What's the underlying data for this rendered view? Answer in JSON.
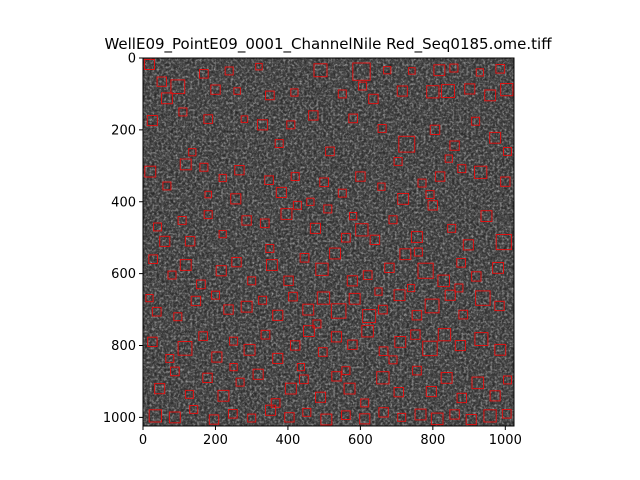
{
  "chart_data": {
    "type": "image",
    "title": "WellE09_PointE09_0001_ChannelNile Red_Seq0185.ome.tiff",
    "xlabel": "",
    "ylabel": "",
    "xlim": [
      0,
      1024
    ],
    "ylim": [
      1024,
      0
    ],
    "x_ticks": [
      0,
      200,
      400,
      600,
      800,
      1000
    ],
    "y_ticks": [
      0,
      200,
      400,
      600,
      800,
      1000
    ],
    "grid": false,
    "background_image": "grayscale fluorescence microscopy field with dense speckled cells",
    "box_color": "#dd1111",
    "boxes_note": "detection boxes as [x, y, size] in image pixel units",
    "boxes": [
      [
        18,
        18,
        28
      ],
      [
        96,
        80,
        38
      ],
      [
        168,
        44,
        24
      ],
      [
        238,
        36,
        22
      ],
      [
        320,
        24,
        18
      ],
      [
        490,
        34,
        36
      ],
      [
        603,
        38,
        48
      ],
      [
        674,
        34,
        20
      ],
      [
        742,
        36,
        18
      ],
      [
        818,
        34,
        30
      ],
      [
        858,
        28,
        22
      ],
      [
        930,
        40,
        20
      ],
      [
        986,
        30,
        24
      ],
      [
        52,
        66,
        26
      ],
      [
        66,
        112,
        30
      ],
      [
        200,
        88,
        26
      ],
      [
        260,
        92,
        18
      ],
      [
        350,
        104,
        24
      ],
      [
        418,
        96,
        20
      ],
      [
        550,
        100,
        22
      ],
      [
        606,
        78,
        22
      ],
      [
        636,
        114,
        26
      ],
      [
        716,
        92,
        28
      ],
      [
        800,
        94,
        34
      ],
      [
        842,
        92,
        36
      ],
      [
        902,
        86,
        28
      ],
      [
        958,
        104,
        30
      ],
      [
        1004,
        88,
        34
      ],
      [
        26,
        174,
        28
      ],
      [
        110,
        150,
        22
      ],
      [
        180,
        170,
        24
      ],
      [
        280,
        170,
        18
      ],
      [
        330,
        186,
        28
      ],
      [
        408,
        186,
        22
      ],
      [
        470,
        160,
        26
      ],
      [
        580,
        168,
        24
      ],
      [
        660,
        196,
        22
      ],
      [
        728,
        240,
        44
      ],
      [
        806,
        200,
        26
      ],
      [
        860,
        244,
        26
      ],
      [
        918,
        176,
        22
      ],
      [
        972,
        222,
        30
      ],
      [
        20,
        316,
        30
      ],
      [
        66,
        356,
        22
      ],
      [
        118,
        296,
        30
      ],
      [
        168,
        304,
        22
      ],
      [
        220,
        334,
        20
      ],
      [
        266,
        312,
        26
      ],
      [
        348,
        340,
        24
      ],
      [
        382,
        374,
        28
      ],
      [
        420,
        330,
        22
      ],
      [
        500,
        346,
        24
      ],
      [
        550,
        376,
        22
      ],
      [
        600,
        330,
        26
      ],
      [
        658,
        358,
        20
      ],
      [
        718,
        392,
        30
      ],
      [
        770,
        348,
        22
      ],
      [
        820,
        330,
        26
      ],
      [
        880,
        308,
        22
      ],
      [
        932,
        318,
        34
      ],
      [
        1000,
        344,
        26
      ],
      [
        40,
        470,
        22
      ],
      [
        60,
        510,
        28
      ],
      [
        108,
        452,
        22
      ],
      [
        130,
        510,
        26
      ],
      [
        180,
        436,
        22
      ],
      [
        220,
        490,
        20
      ],
      [
        256,
        392,
        28
      ],
      [
        286,
        452,
        26
      ],
      [
        336,
        460,
        24
      ],
      [
        396,
        434,
        30
      ],
      [
        426,
        410,
        22
      ],
      [
        476,
        474,
        28
      ],
      [
        510,
        420,
        22
      ],
      [
        560,
        500,
        24
      ],
      [
        604,
        478,
        34
      ],
      [
        640,
        506,
        26
      ],
      [
        690,
        450,
        22
      ],
      [
        756,
        498,
        30
      ],
      [
        800,
        410,
        26
      ],
      [
        852,
        474,
        22
      ],
      [
        898,
        520,
        28
      ],
      [
        948,
        440,
        30
      ],
      [
        996,
        512,
        42
      ],
      [
        28,
        560,
        24
      ],
      [
        80,
        604,
        22
      ],
      [
        118,
        576,
        30
      ],
      [
        160,
        630,
        24
      ],
      [
        216,
        592,
        28
      ],
      [
        258,
        568,
        26
      ],
      [
        300,
        620,
        22
      ],
      [
        356,
        576,
        30
      ],
      [
        402,
        620,
        26
      ],
      [
        446,
        556,
        24
      ],
      [
        494,
        588,
        34
      ],
      [
        530,
        544,
        30
      ],
      [
        578,
        620,
        28
      ],
      [
        620,
        604,
        24
      ],
      [
        680,
        584,
        26
      ],
      [
        724,
        546,
        30
      ],
      [
        780,
        592,
        42
      ],
      [
        830,
        620,
        32
      ],
      [
        878,
        570,
        24
      ],
      [
        920,
        608,
        26
      ],
      [
        980,
        584,
        30
      ],
      [
        18,
        668,
        20
      ],
      [
        38,
        706,
        24
      ],
      [
        96,
        720,
        22
      ],
      [
        146,
        676,
        26
      ],
      [
        200,
        660,
        22
      ],
      [
        236,
        700,
        26
      ],
      [
        286,
        692,
        30
      ],
      [
        330,
        674,
        22
      ],
      [
        372,
        716,
        28
      ],
      [
        414,
        664,
        24
      ],
      [
        456,
        700,
        30
      ],
      [
        498,
        668,
        34
      ],
      [
        540,
        704,
        40
      ],
      [
        584,
        670,
        30
      ],
      [
        624,
        718,
        36
      ],
      [
        662,
        700,
        24
      ],
      [
        708,
        660,
        30
      ],
      [
        756,
        716,
        26
      ],
      [
        798,
        690,
        38
      ],
      [
        848,
        660,
        28
      ],
      [
        884,
        714,
        24
      ],
      [
        938,
        668,
        40
      ],
      [
        984,
        690,
        26
      ],
      [
        26,
        790,
        26
      ],
      [
        74,
        836,
        22
      ],
      [
        116,
        808,
        38
      ],
      [
        166,
        774,
        24
      ],
      [
        204,
        832,
        28
      ],
      [
        250,
        788,
        22
      ],
      [
        294,
        812,
        30
      ],
      [
        338,
        770,
        24
      ],
      [
        372,
        836,
        28
      ],
      [
        420,
        800,
        26
      ],
      [
        458,
        760,
        30
      ],
      [
        496,
        818,
        24
      ],
      [
        534,
        776,
        28
      ],
      [
        578,
        798,
        26
      ],
      [
        620,
        760,
        32
      ],
      [
        664,
        816,
        24
      ],
      [
        710,
        790,
        30
      ],
      [
        752,
        770,
        26
      ],
      [
        792,
        808,
        40
      ],
      [
        832,
        770,
        34
      ],
      [
        876,
        800,
        28
      ],
      [
        934,
        782,
        36
      ],
      [
        986,
        812,
        30
      ],
      [
        46,
        920,
        28
      ],
      [
        88,
        872,
        24
      ],
      [
        128,
        936,
        22
      ],
      [
        178,
        890,
        26
      ],
      [
        222,
        940,
        30
      ],
      [
        268,
        902,
        22
      ],
      [
        318,
        880,
        28
      ],
      [
        366,
        960,
        24
      ],
      [
        408,
        920,
        30
      ],
      [
        444,
        894,
        24
      ],
      [
        490,
        944,
        28
      ],
      [
        534,
        886,
        26
      ],
      [
        570,
        920,
        30
      ],
      [
        612,
        960,
        22
      ],
      [
        662,
        890,
        34
      ],
      [
        706,
        930,
        26
      ],
      [
        756,
        870,
        24
      ],
      [
        796,
        928,
        28
      ],
      [
        838,
        890,
        30
      ],
      [
        880,
        946,
        26
      ],
      [
        924,
        904,
        32
      ],
      [
        972,
        940,
        28
      ],
      [
        1006,
        896,
        22
      ],
      [
        34,
        996,
        34
      ],
      [
        88,
        1000,
        30
      ],
      [
        140,
        978,
        22
      ],
      [
        196,
        1006,
        26
      ],
      [
        248,
        990,
        24
      ],
      [
        300,
        1002,
        22
      ],
      [
        352,
        980,
        28
      ],
      [
        404,
        1000,
        26
      ],
      [
        452,
        986,
        22
      ],
      [
        506,
        1006,
        30
      ],
      [
        560,
        994,
        24
      ],
      [
        612,
        1004,
        28
      ],
      [
        664,
        986,
        26
      ],
      [
        714,
        1000,
        22
      ],
      [
        766,
        992,
        30
      ],
      [
        812,
        1004,
        32
      ],
      [
        860,
        992,
        26
      ],
      [
        906,
        1006,
        28
      ],
      [
        958,
        996,
        34
      ],
      [
        1004,
        990,
        24
      ],
      [
        136,
        262,
        20
      ],
      [
        376,
        238,
        22
      ],
      [
        516,
        260,
        24
      ],
      [
        704,
        288,
        22
      ],
      [
        844,
        280,
        20
      ],
      [
        1006,
        260,
        22
      ],
      [
        180,
        380,
        18
      ],
      [
        462,
        400,
        20
      ],
      [
        792,
        380,
        22
      ],
      [
        580,
        440,
        20
      ],
      [
        350,
        530,
        22
      ],
      [
        760,
        540,
        22
      ],
      [
        650,
        650,
        20
      ],
      [
        480,
        740,
        22
      ],
      [
        740,
        640,
        20
      ],
      [
        872,
        640,
        22
      ],
      [
        436,
        860,
        20
      ],
      [
        690,
        840,
        22
      ],
      [
        250,
        860,
        20
      ],
      [
        560,
        870,
        22
      ]
    ]
  }
}
